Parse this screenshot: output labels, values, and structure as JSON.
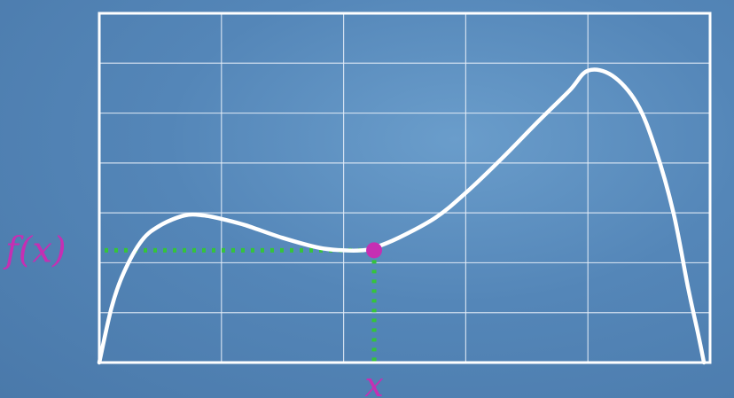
{
  "chart_data": {
    "type": "line",
    "title": "",
    "xlabel": "",
    "ylabel": "",
    "xlim": [
      0,
      5
    ],
    "ylim": [
      0,
      7
    ],
    "grid": true,
    "series": [
      {
        "values": [
          [
            0.0,
            0.0
          ],
          [
            0.1,
            1.1
          ],
          [
            0.2,
            1.8
          ],
          [
            0.35,
            2.45
          ],
          [
            0.5,
            2.75
          ],
          [
            0.7,
            2.95
          ],
          [
            0.85,
            2.95
          ],
          [
            1.0,
            2.88
          ],
          [
            1.2,
            2.75
          ],
          [
            1.5,
            2.5
          ],
          [
            1.8,
            2.3
          ],
          [
            2.0,
            2.25
          ],
          [
            2.15,
            2.25
          ],
          [
            2.25,
            2.3
          ],
          [
            2.45,
            2.5
          ],
          [
            2.75,
            2.9
          ],
          [
            3.0,
            3.4
          ],
          [
            3.3,
            4.1
          ],
          [
            3.6,
            4.85
          ],
          [
            3.85,
            5.45
          ],
          [
            4.0,
            5.85
          ],
          [
            4.2,
            5.75
          ],
          [
            4.4,
            5.2
          ],
          [
            4.55,
            4.3
          ],
          [
            4.7,
            3.0
          ],
          [
            4.82,
            1.5
          ],
          [
            4.9,
            0.6
          ],
          [
            4.95,
            0.0
          ]
        ]
      }
    ],
    "highlight_point": {
      "x": 2.25,
      "y": 2.25
    },
    "annotations": {
      "x_marker": "x",
      "y_marker": "f(x)"
    },
    "colors": {
      "curve": "#ffffff",
      "grid": "#e6eef8",
      "guide": "#35c43a",
      "point": "#c52fb3",
      "label": "#c52fb3"
    }
  }
}
